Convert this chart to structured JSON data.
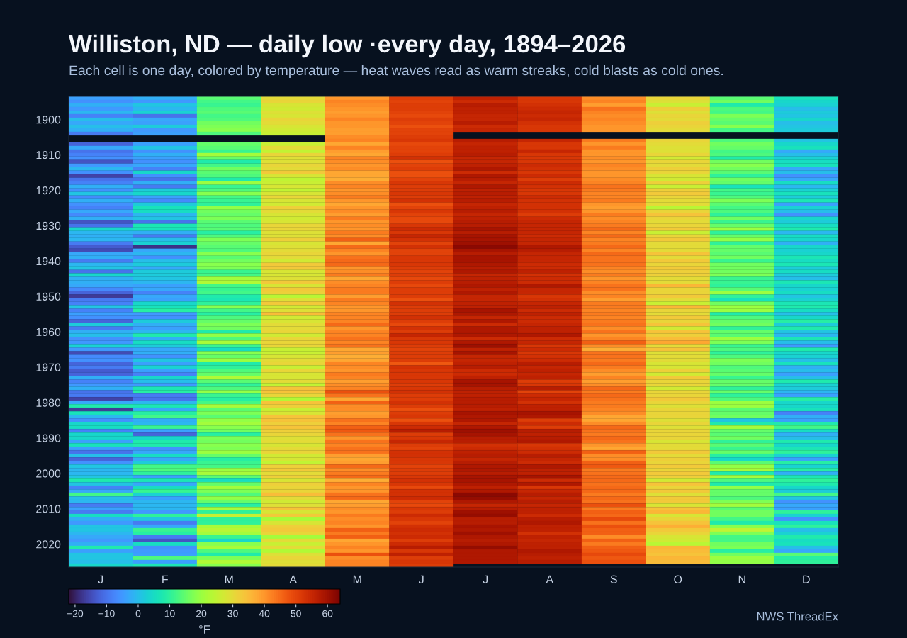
{
  "chart_data": {
    "type": "heatmap",
    "title": "Williston, ND — daily low ·every day, 1894–2026",
    "subtitle": "Each cell is one day, colored by temperature — heat waves read as warm streaks, cold blasts as cold ones.",
    "categories": [
      "J",
      "F",
      "M",
      "A",
      "M",
      "J",
      "J",
      "A",
      "S",
      "O",
      "N",
      "D"
    ],
    "y_categories": [
      null,
      null,
      null,
      null,
      null,
      null,
      "1900",
      null,
      null,
      null,
      null,
      null,
      null,
      null,
      null,
      null,
      "1910",
      null,
      null,
      null,
      null,
      null,
      null,
      null,
      null,
      null,
      "1920",
      null,
      null,
      null,
      null,
      null,
      null,
      null,
      null,
      null,
      "1930",
      null,
      null,
      null,
      null,
      null,
      null,
      null,
      null,
      null,
      "1940",
      null,
      null,
      null,
      null,
      null,
      null,
      null,
      null,
      null,
      "1950",
      null,
      null,
      null,
      null,
      null,
      null,
      null,
      null,
      null,
      "1960",
      null,
      null,
      null,
      null,
      null,
      null,
      null,
      null,
      null,
      "1970",
      null,
      null,
      null,
      null,
      null,
      null,
      null,
      null,
      null,
      "1980",
      null,
      null,
      null,
      null,
      null,
      null,
      null,
      null,
      null,
      "1990",
      null,
      null,
      null,
      null,
      null,
      null,
      null,
      null,
      null,
      "2000",
      null,
      null,
      null,
      null,
      null,
      null,
      null,
      null,
      null,
      "2010",
      null,
      null,
      null,
      null,
      null,
      null,
      null,
      null,
      null,
      "2020",
      null,
      null,
      null,
      null,
      null,
      null
    ],
    "cells": [
      [
        -4,
        -2,
        14,
        30,
        40,
        51,
        56,
        52,
        41,
        31,
        14,
        6
      ],
      [
        -6,
        -5,
        12,
        31,
        42,
        50,
        54,
        52,
        42,
        29,
        16,
        4
      ],
      [
        -2,
        1,
        11,
        28,
        41,
        51,
        57,
        53,
        39,
        26,
        8,
        3
      ],
      [
        -5,
        -1,
        13,
        27,
        40,
        51,
        56,
        54,
        44,
        32,
        13,
        0
      ],
      [
        -1,
        3,
        14,
        29,
        39,
        50,
        56,
        55,
        42,
        29,
        12,
        2
      ],
      [
        -8,
        -10,
        12,
        28,
        40,
        49,
        55,
        54,
        41,
        31,
        17,
        1
      ],
      [
        0,
        -3,
        13,
        31,
        42,
        51,
        55,
        55,
        42,
        30,
        15,
        4
      ],
      [
        -3,
        -4,
        16,
        30,
        40,
        50,
        57,
        53,
        41,
        32,
        14,
        0
      ],
      [
        0,
        2,
        17,
        28,
        40,
        48,
        54,
        52,
        40,
        31,
        18,
        1
      ],
      [
        -2,
        -5,
        18,
        27,
        39,
        50,
        55,
        52,
        40,
        30,
        12,
        2
      ],
      [
        -9,
        -4,
        13,
        26,
        39,
        50,
        null,
        null,
        null,
        null,
        null,
        null
      ],
      [
        null,
        null,
        null,
        null,
        41,
        51,
        null,
        null,
        null,
        null,
        null,
        null
      ],
      [
        null,
        null,
        null,
        null,
        42,
        52,
        57,
        55,
        43,
        31,
        13,
        1
      ],
      [
        -12,
        -4,
        15,
        26,
        38,
        49,
        55,
        52,
        40,
        30,
        16,
        4
      ],
      [
        -3,
        1,
        14,
        30,
        42,
        50,
        56,
        52,
        43,
        29,
        15,
        6
      ],
      [
        -10,
        -6,
        11,
        25,
        39,
        50,
        56,
        55,
        40,
        29,
        12,
        -3
      ],
      [
        -8,
        -2,
        21,
        31,
        38,
        51,
        57,
        52,
        40,
        31,
        13,
        0
      ],
      [
        -6,
        -4,
        15,
        29,
        42,
        53,
        55,
        52,
        41,
        27,
        8,
        3
      ],
      [
        -14,
        -6,
        8,
        29,
        41,
        48,
        55,
        52,
        40,
        31,
        16,
        5
      ],
      [
        -5,
        -3,
        12,
        31,
        40,
        50,
        56,
        54,
        42,
        30,
        18,
        6
      ],
      [
        -1,
        -8,
        16,
        30,
        41,
        51,
        58,
        53,
        41,
        32,
        16,
        -3
      ],
      [
        -6,
        4,
        14,
        33,
        38,
        48,
        54,
        52,
        40,
        31,
        14,
        0
      ],
      [
        -16,
        -6,
        13,
        28,
        38,
        48,
        58,
        54,
        40,
        28,
        10,
        -6
      ],
      [
        -10,
        -10,
        8,
        25,
        37,
        50,
        57,
        51,
        41,
        27,
        16,
        -3
      ],
      [
        -8,
        -2,
        20,
        26,
        41,
        52,
        55,
        54,
        42,
        32,
        15,
        5
      ],
      [
        -2,
        -9,
        11,
        28,
        42,
        51,
        58,
        53,
        44,
        26,
        6,
        -1
      ],
      [
        -6,
        2,
        13,
        25,
        40,
        51,
        56,
        52,
        43,
        32,
        12,
        3
      ],
      [
        1,
        4,
        18,
        28,
        41,
        52,
        57,
        52,
        42,
        33,
        11,
        6
      ],
      [
        -7,
        -4,
        12,
        31,
        43,
        51,
        56,
        54,
        42,
        31,
        13,
        2
      ],
      [
        -2,
        -7,
        11,
        28,
        40,
        53,
        57,
        53,
        43,
        30,
        17,
        7
      ],
      [
        -6,
        2,
        10,
        27,
        38,
        48,
        55,
        53,
        40,
        30,
        14,
        -4
      ],
      [
        -8,
        6,
        19,
        32,
        40,
        50,
        56,
        53,
        39,
        24,
        12,
        3
      ],
      [
        -3,
        5,
        16,
        30,
        41,
        52,
        57,
        53,
        40,
        31,
        13,
        0
      ],
      [
        -7,
        -1,
        15,
        28,
        39,
        50,
        55,
        51,
        43,
        34,
        10,
        -6
      ],
      [
        -2,
        1,
        17,
        27,
        43,
        49,
        56,
        54,
        41,
        31,
        16,
        4
      ],
      [
        -14,
        -10,
        14,
        28,
        40,
        49,
        57,
        55,
        42,
        30,
        11,
        2
      ],
      [
        -10,
        7,
        13,
        31,
        41,
        52,
        57,
        55,
        43,
        31,
        15,
        5
      ],
      [
        4,
        6,
        14,
        31,
        40,
        54,
        59,
        55,
        45,
        33,
        20,
        8
      ],
      [
        -1,
        -2,
        9,
        29,
        43,
        52,
        57,
        55,
        42,
        26,
        10,
        -1
      ],
      [
        -2,
        -9,
        13,
        29,
        41,
        55,
        59,
        54,
        45,
        31,
        15,
        5
      ],
      [
        -1,
        0,
        17,
        32,
        46,
        53,
        59,
        55,
        42,
        33,
        19,
        4
      ],
      [
        -9,
        3,
        15,
        28,
        38,
        50,
        60,
        55,
        43,
        30,
        10,
        -2
      ],
      [
        -13,
        -18,
        14,
        29,
        45,
        53,
        62,
        58,
        45,
        30,
        15,
        4
      ],
      [
        -15,
        -3,
        13,
        30,
        42,
        50,
        59,
        57,
        42,
        30,
        15,
        3
      ],
      [
        -3,
        -1,
        18,
        31,
        40,
        50,
        57,
        55,
        45,
        34,
        14,
        4
      ],
      [
        -2,
        -6,
        14,
        30,
        44,
        52,
        59,
        55,
        44,
        30,
        16,
        7
      ],
      [
        -9,
        0,
        16,
        27,
        45,
        52,
        59,
        55,
        44,
        33,
        11,
        5
      ],
      [
        -1,
        2,
        18,
        33,
        45,
        52,
        58,
        54,
        44,
        31,
        16,
        7
      ],
      [
        1,
        -3,
        17,
        33,
        40,
        51,
        57,
        54,
        42,
        33,
        16,
        2
      ],
      [
        -10,
        2,
        11,
        28,
        41,
        50,
        58,
        56,
        41,
        32,
        16,
        5
      ],
      [
        4,
        2,
        12,
        28,
        43,
        51,
        55,
        53,
        43,
        32,
        17,
        2
      ],
      [
        -2,
        1,
        21,
        29,
        38,
        49,
        56,
        54,
        40,
        30,
        11,
        0
      ],
      [
        -2,
        -1,
        23,
        33,
        41,
        51,
        57,
        54,
        42,
        30,
        11,
        7
      ],
      [
        -3,
        -4,
        12,
        28,
        42,
        49,
        58,
        58,
        44,
        36,
        10,
        4
      ],
      [
        -7,
        -3,
        11,
        33,
        43,
        51,
        56,
        55,
        44,
        31,
        14,
        3
      ],
      [
        -12,
        -8,
        12,
        32,
        43,
        51,
        58,
        55,
        41,
        31,
        20,
        5
      ],
      [
        -17,
        -3,
        8,
        24,
        39,
        51,
        55,
        52,
        42,
        33,
        10,
        1
      ],
      [
        -9,
        -4,
        7,
        29,
        43,
        48,
        55,
        53,
        39,
        30,
        6,
        3
      ],
      [
        -8,
        4,
        10,
        33,
        42,
        53,
        56,
        55,
        43,
        26,
        16,
        7
      ],
      [
        1,
        6,
        18,
        27,
        40,
        51,
        56,
        56,
        43,
        36,
        20,
        8
      ],
      [
        -8,
        9,
        12,
        29,
        40,
        51,
        59,
        54,
        42,
        31,
        20,
        5
      ],
      [
        -4,
        -5,
        9,
        35,
        42,
        51,
        58,
        56,
        43,
        30,
        8,
        0
      ],
      [
        -6,
        -6,
        13,
        27,
        42,
        53,
        55,
        54,
        42,
        33,
        13,
        4
      ],
      [
        -12,
        2,
        15,
        28,
        42,
        51,
        58,
        54,
        43,
        31,
        15,
        9
      ],
      [
        2,
        -2,
        17,
        30,
        45,
        49,
        54,
        55,
        44,
        34,
        16,
        2
      ],
      [
        -9,
        -4,
        16,
        30,
        40,
        53,
        58,
        56,
        41,
        27,
        10,
        8
      ],
      [
        -2,
        -1,
        8,
        31,
        42,
        51,
        58,
        56,
        44,
        34,
        15,
        1
      ],
      [
        0,
        8,
        19,
        27,
        42,
        55,
        58,
        58,
        40,
        32,
        14,
        -1
      ],
      [
        -6,
        -2,
        13,
        31,
        44,
        52,
        54,
        54,
        42,
        35,
        20,
        7
      ],
      [
        -5,
        5,
        22,
        31,
        42,
        52,
        58,
        55,
        46,
        38,
        17,
        0
      ],
      [
        3,
        2,
        11,
        31,
        44,
        51,
        60,
        52,
        41,
        30,
        11,
        -5
      ],
      [
        -5,
        -3,
        5,
        26,
        38,
        50,
        56,
        54,
        37,
        34,
        13,
        8
      ],
      [
        -15,
        -2,
        18,
        26,
        39,
        51,
        59,
        52,
        44,
        29,
        10,
        4
      ],
      [
        -7,
        -6,
        15,
        28,
        37,
        51,
        55,
        53,
        44,
        30,
        13,
        3
      ],
      [
        -6,
        1,
        20,
        30,
        38,
        51,
        55,
        54,
        43,
        30,
        17,
        0
      ],
      [
        -12,
        -4,
        8,
        31,
        42,
        47,
        56,
        57,
        45,
        28,
        16,
        6
      ],
      [
        -9,
        3,
        10,
        26,
        41,
        53,
        57,
        55,
        43,
        28,
        13,
        -2
      ],
      [
        -13,
        -4,
        13,
        31,
        40,
        52,
        54,
        56,
        41,
        32,
        14,
        0
      ],
      [
        -12,
        -8,
        15,
        28,
        43,
        52,
        54,
        55,
        39,
        27,
        15,
        -4
      ],
      [
        -2,
        4,
        23,
        28,
        42,
        52,
        56,
        56,
        42,
        33,
        11,
        0
      ],
      [
        -8,
        0,
        14,
        30,
        39,
        52,
        59,
        51,
        39,
        31,
        15,
        8
      ],
      [
        -5,
        -5,
        10,
        25,
        41,
        51,
        59,
        52,
        41,
        31,
        15,
        3
      ],
      [
        -2,
        7,
        13,
        34,
        42,
        52,
        57,
        57,
        45,
        27,
        10,
        2
      ],
      [
        -10,
        9,
        19,
        34,
        48,
        53,
        56,
        50,
        43,
        31,
        15,
        -1
      ],
      [
        -9,
        -9,
        11,
        31,
        44,
        51,
        56,
        54,
        45,
        31,
        10,
        -4
      ],
      [
        -16,
        -10,
        9,
        23,
        38,
        51,
        57,
        55,
        44,
        33,
        13,
        9
      ],
      [
        -3,
        -1,
        12,
        34,
        46,
        53,
        57,
        53,
        43,
        31,
        20,
        4
      ],
      [
        8,
        7,
        22,
        32,
        41,
        51,
        57,
        56,
        43,
        29,
        20,
        4
      ],
      [
        -17,
        -3,
        14,
        26,
        41,
        48,
        56,
        56,
        42,
        31,
        14,
        6
      ],
      [
        6,
        9,
        17,
        28,
        39,
        51,
        59,
        59,
        41,
        31,
        15,
        -8
      ],
      [
        -1,
        12,
        14,
        34,
        40,
        52,
        58,
        58,
        38,
        31,
        16,
        -2
      ],
      [
        -6,
        -2,
        19,
        34,
        44,
        48,
        58,
        51,
        38,
        29,
        1,
        -4
      ],
      [
        4,
        -1,
        21,
        32,
        42,
        52,
        55,
        54,
        41,
        31,
        8,
        8
      ],
      [
        5,
        11,
        18,
        34,
        46,
        54,
        58,
        51,
        45,
        29,
        21,
        12
      ],
      [
        -8,
        -4,
        16,
        32,
        47,
        57,
        60,
        57,
        44,
        31,
        15,
        5
      ],
      [
        4,
        -12,
        9,
        31,
        44,
        51,
        59,
        56,
        43,
        31,
        14,
        -2
      ],
      [
        4,
        4,
        17,
        29,
        40,
        52,
        57,
        57,
        45,
        31,
        16,
        0
      ],
      [
        -4,
        8,
        16,
        30,
        44,
        55,
        57,
        58,
        44,
        28,
        10,
        8
      ],
      [
        6,
        8,
        18,
        28,
        42,
        51,
        53,
        52,
        40,
        30,
        14,
        4
      ],
      [
        -4,
        -6,
        17,
        30,
        44,
        50,
        54,
        53,
        38,
        30,
        11,
        7
      ],
      [
        -10,
        -3,
        20,
        31,
        44,
        53,
        56,
        54,
        46,
        33,
        15,
        10
      ],
      [
        0,
        5,
        15,
        27,
        39,
        53,
        57,
        57,
        41,
        30,
        9,
        3
      ],
      [
        -12,
        -3,
        9,
        28,
        38,
        52,
        55,
        55,
        41,
        32,
        4,
        -4
      ],
      [
        -6,
        2,
        11,
        25,
        39,
        52,
        57,
        54,
        46,
        31,
        14,
        9
      ],
      [
        1,
        12,
        12,
        32,
        45,
        50,
        58,
        58,
        47,
        33,
        19,
        3
      ],
      [
        -1,
        13,
        20,
        33,
        41,
        51,
        58,
        56,
        43,
        31,
        22,
        9
      ],
      [
        -1,
        10,
        22,
        30,
        43,
        51,
        57,
        56,
        44,
        33,
        8,
        -2
      ],
      [
        1,
        -4,
        14,
        32,
        45,
        52,
        59,
        59,
        45,
        32,
        21,
        7
      ],
      [
        8,
        7,
        5,
        28,
        37,
        53,
        59,
        54,
        45,
        27,
        13,
        10
      ],
      [
        1,
        -3,
        15,
        32,
        42,
        52,
        58,
        58,
        44,
        34,
        8,
        8
      ],
      [
        -8,
        5,
        21,
        31,
        40,
        49,
        56,
        52,
        45,
        31,
        19,
        4
      ],
      [
        -3,
        11,
        17,
        31,
        40,
        53,
        58,
        55,
        45,
        33,
        15,
        2
      ],
      [
        12,
        3,
        13,
        35,
        44,
        53,
        62,
        57,
        43,
        29,
        15,
        12
      ],
      [
        0,
        -4,
        19,
        30,
        45,
        54,
        61,
        55,
        45,
        33,
        13,
        1
      ],
      [
        -1,
        -1,
        15,
        27,
        38,
        50,
        58,
        57,
        44,
        33,
        17,
        -6
      ],
      [
        -9,
        -1,
        9,
        29,
        39,
        49,
        55,
        55,
        48,
        28,
        21,
        -3
      ],
      [
        -4,
        -1,
        22,
        34,
        41,
        52,
        57,
        56,
        43,
        34,
        14,
        -4
      ],
      [
        -9,
        -5,
        10,
        28,
        40,
        51,
        60,
        56,
        46,
        36,
        16,
        10
      ],
      [
        5,
        10,
        26,
        33,
        43,
        54,
        61,
        54,
        45,
        28,
        16,
        3
      ],
      [
        -2,
        1,
        10,
        22,
        41,
        52,
        57,
        57,
        49,
        31,
        12,
        -6
      ],
      [
        -5,
        -9,
        10,
        28,
        42,
        50,
        57,
        58,
        44,
        34,
        8,
        6
      ],
      [
        1,
        -3,
        22,
        32,
        40,
        53,
        59,
        56,
        48,
        37,
        18,
        10
      ],
      [
        1,
        11,
        24,
        33,
        46,
        54,
        58,
        56,
        46,
        33,
        25,
        0
      ],
      [
        -1,
        9,
        21,
        31,
        43,
        53,
        60,
        53,
        46,
        31,
        17,
        3
      ],
      [
        -3,
        -9,
        11,
        21,
        46,
        54,
        58,
        56,
        41,
        28,
        12,
        8
      ],
      [
        -5,
        -14,
        4,
        30,
        38,
        51,
        57,
        55,
        46,
        27,
        12,
        5
      ],
      [
        -2,
        5,
        18,
        26,
        40,
        54,
        58,
        56,
        43,
        24,
        16,
        6
      ],
      [
        8,
        -6,
        22,
        30,
        42,
        57,
        61,
        56,
        46,
        36,
        17,
        0
      ],
      [
        -4,
        -5,
        13,
        23,
        40,
        52,
        58,
        58,
        47,
        35,
        9,
        -3
      ],
      [
        1,
        -4,
        8,
        29,
        48,
        56,
        58,
        57,
        49,
        34,
        16,
        14
      ],
      [
        1,
        13,
        17,
        31,
        41,
        51,
        58,
        56,
        47,
        36,
        20,
        9
      ],
      [
        0,
        -4,
        23,
        29,
        42,
        52,
        58,
        57,
        48,
        35,
        19,
        10
      ],
      [
        4,
        7,
        18,
        30,
        42,
        51,
        null,
        null,
        null,
        null,
        null,
        null
      ]
    ],
    "clim": [
      -22,
      64
    ],
    "cticks": [
      {
        "value": -20,
        "label": "−20"
      },
      {
        "value": -10,
        "label": "−10"
      },
      0,
      10,
      20,
      30,
      40,
      50,
      60
    ],
    "clabel": "°F",
    "annotations": [
      "NWS ThreadEx"
    ]
  }
}
